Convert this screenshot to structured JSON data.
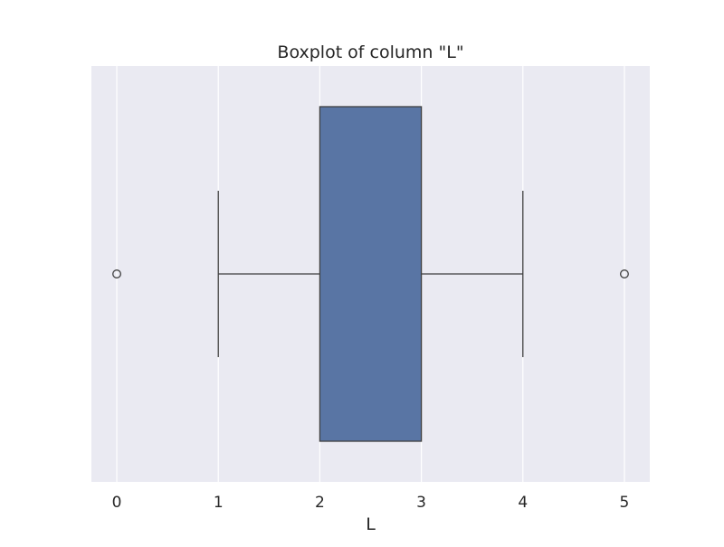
{
  "chart_data": {
    "type": "boxplot",
    "title": "Boxplot of column \"L\"",
    "xlabel": "L",
    "ylabel": "",
    "orientation": "horizontal",
    "xlim": [
      -0.25,
      5.25
    ],
    "xticks": [
      0,
      1,
      2,
      3,
      4,
      5
    ],
    "xtick_labels": [
      "0",
      "1",
      "2",
      "3",
      "4",
      "5"
    ],
    "grid": true,
    "legend": "none",
    "box": {
      "whisker_low": 1,
      "q1": 2,
      "q3": 3,
      "whisker_high": 4,
      "outliers": [
        0,
        5
      ]
    },
    "colors": {
      "plot_background": "#EAEAF2",
      "grid": "#FFFFFF",
      "box_fill": "#5975A4",
      "edge": "#3F3F3F"
    }
  }
}
